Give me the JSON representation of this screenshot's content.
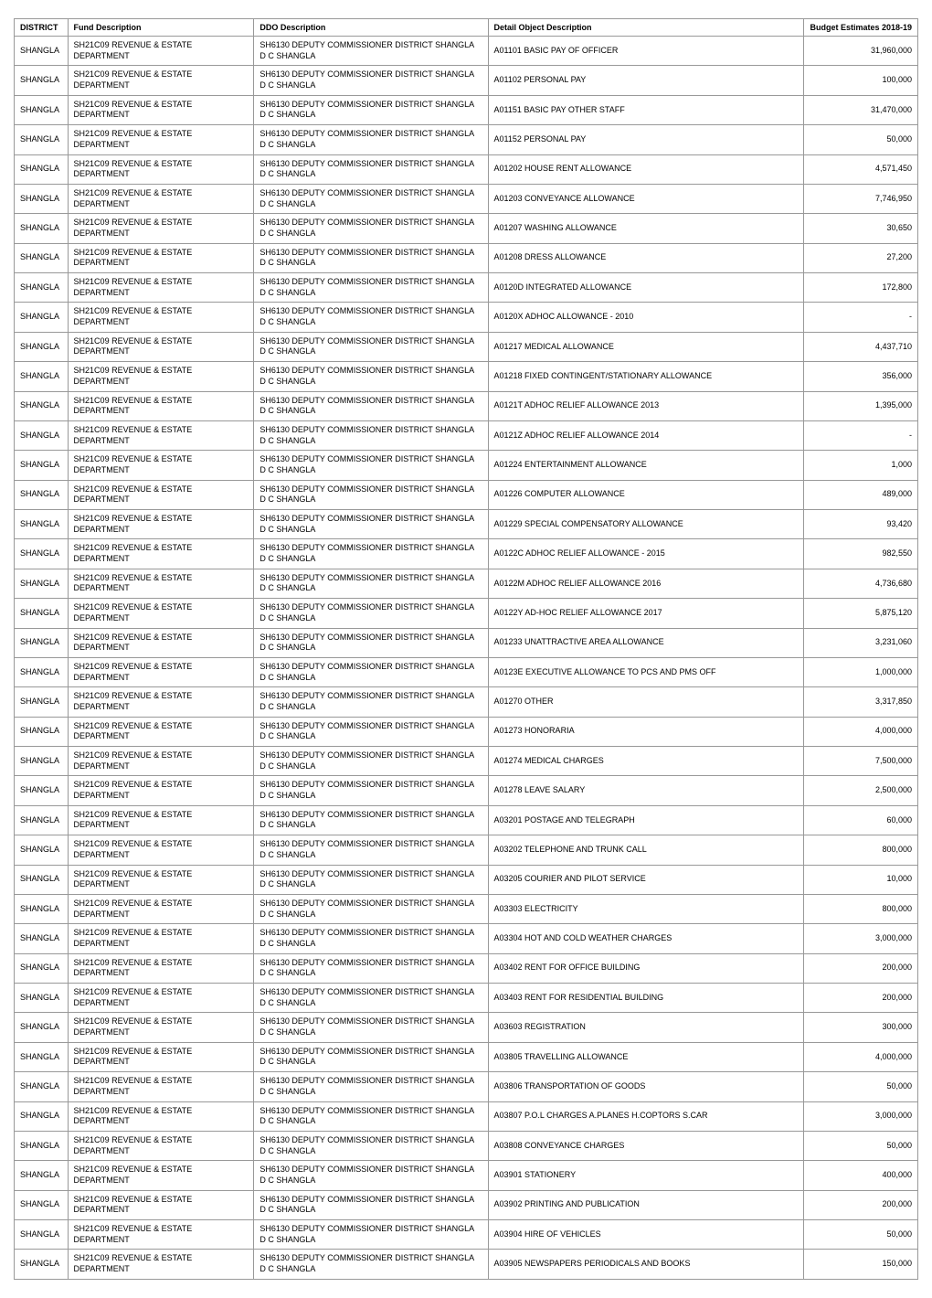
{
  "headers": {
    "district": "DISTRICT",
    "fund": "Fund Description",
    "ddo": "DDO Description",
    "detail": "Detail Object Description",
    "budget": "Budget Estimates 2018-19"
  },
  "rows": [
    {
      "district": "SHANGLA",
      "fund": "SH21C09 REVENUE & ESTATE DEPARTMENT",
      "ddo": "SH6130 DEPUTY COMMISSIONER DISTRICT SHANGLA D C SHANGLA",
      "detail": "A01101 BASIC PAY OF OFFICER",
      "budget": "31,960,000"
    },
    {
      "district": "SHANGLA",
      "fund": "SH21C09 REVENUE & ESTATE DEPARTMENT",
      "ddo": "SH6130 DEPUTY COMMISSIONER DISTRICT SHANGLA D C SHANGLA",
      "detail": "A01102 PERSONAL PAY",
      "budget": "100,000"
    },
    {
      "district": "SHANGLA",
      "fund": "SH21C09 REVENUE & ESTATE DEPARTMENT",
      "ddo": "SH6130 DEPUTY COMMISSIONER DISTRICT SHANGLA D C SHANGLA",
      "detail": "A01151 BASIC PAY OTHER STAFF",
      "budget": "31,470,000"
    },
    {
      "district": "SHANGLA",
      "fund": "SH21C09 REVENUE & ESTATE DEPARTMENT",
      "ddo": "SH6130 DEPUTY COMMISSIONER DISTRICT SHANGLA D C SHANGLA",
      "detail": "A01152 PERSONAL PAY",
      "budget": "50,000"
    },
    {
      "district": "SHANGLA",
      "fund": "SH21C09 REVENUE & ESTATE DEPARTMENT",
      "ddo": "SH6130 DEPUTY COMMISSIONER DISTRICT SHANGLA D C SHANGLA",
      "detail": "A01202 HOUSE RENT ALLOWANCE",
      "budget": "4,571,450"
    },
    {
      "district": "SHANGLA",
      "fund": "SH21C09 REVENUE & ESTATE DEPARTMENT",
      "ddo": "SH6130 DEPUTY COMMISSIONER DISTRICT SHANGLA D C SHANGLA",
      "detail": "A01203 CONVEYANCE ALLOWANCE",
      "budget": "7,746,950"
    },
    {
      "district": "SHANGLA",
      "fund": "SH21C09 REVENUE & ESTATE DEPARTMENT",
      "ddo": "SH6130 DEPUTY COMMISSIONER DISTRICT SHANGLA D C SHANGLA",
      "detail": "A01207 WASHING ALLOWANCE",
      "budget": "30,650"
    },
    {
      "district": "SHANGLA",
      "fund": "SH21C09 REVENUE & ESTATE DEPARTMENT",
      "ddo": "SH6130 DEPUTY COMMISSIONER DISTRICT SHANGLA D C SHANGLA",
      "detail": "A01208 DRESS ALLOWANCE",
      "budget": "27,200"
    },
    {
      "district": "SHANGLA",
      "fund": "SH21C09 REVENUE & ESTATE DEPARTMENT",
      "ddo": "SH6130 DEPUTY COMMISSIONER DISTRICT SHANGLA D C SHANGLA",
      "detail": "A0120D INTEGRATED ALLOWANCE",
      "budget": "172,800"
    },
    {
      "district": "SHANGLA",
      "fund": "SH21C09 REVENUE & ESTATE DEPARTMENT",
      "ddo": "SH6130 DEPUTY COMMISSIONER DISTRICT SHANGLA D C SHANGLA",
      "detail": "A0120X ADHOC ALLOWANCE - 2010",
      "budget": "-"
    },
    {
      "district": "SHANGLA",
      "fund": "SH21C09 REVENUE & ESTATE DEPARTMENT",
      "ddo": "SH6130 DEPUTY COMMISSIONER DISTRICT SHANGLA D C SHANGLA",
      "detail": "A01217 MEDICAL ALLOWANCE",
      "budget": "4,437,710"
    },
    {
      "district": "SHANGLA",
      "fund": "SH21C09 REVENUE & ESTATE DEPARTMENT",
      "ddo": "SH6130 DEPUTY COMMISSIONER DISTRICT SHANGLA D C SHANGLA",
      "detail": "A01218 FIXED CONTINGENT/STATIONARY ALLOWANCE",
      "budget": "356,000"
    },
    {
      "district": "SHANGLA",
      "fund": "SH21C09 REVENUE & ESTATE DEPARTMENT",
      "ddo": "SH6130 DEPUTY COMMISSIONER DISTRICT SHANGLA D C SHANGLA",
      "detail": "A0121T ADHOC RELIEF ALLOWANCE 2013",
      "budget": "1,395,000"
    },
    {
      "district": "SHANGLA",
      "fund": "SH21C09 REVENUE & ESTATE DEPARTMENT",
      "ddo": "SH6130 DEPUTY COMMISSIONER DISTRICT SHANGLA D C SHANGLA",
      "detail": "A0121Z ADHOC RELIEF ALLOWANCE 2014",
      "budget": "-"
    },
    {
      "district": "SHANGLA",
      "fund": "SH21C09 REVENUE & ESTATE DEPARTMENT",
      "ddo": "SH6130 DEPUTY COMMISSIONER DISTRICT SHANGLA D C SHANGLA",
      "detail": "A01224 ENTERTAINMENT ALLOWANCE",
      "budget": "1,000"
    },
    {
      "district": "SHANGLA",
      "fund": "SH21C09 REVENUE & ESTATE DEPARTMENT",
      "ddo": "SH6130 DEPUTY COMMISSIONER DISTRICT SHANGLA D C SHANGLA",
      "detail": "A01226 COMPUTER ALLOWANCE",
      "budget": "489,000"
    },
    {
      "district": "SHANGLA",
      "fund": "SH21C09 REVENUE & ESTATE DEPARTMENT",
      "ddo": "SH6130 DEPUTY COMMISSIONER DISTRICT SHANGLA D C SHANGLA",
      "detail": "A01229 SPECIAL COMPENSATORY ALLOWANCE",
      "budget": "93,420"
    },
    {
      "district": "SHANGLA",
      "fund": "SH21C09 REVENUE & ESTATE DEPARTMENT",
      "ddo": "SH6130 DEPUTY COMMISSIONER DISTRICT SHANGLA D C SHANGLA",
      "detail": "A0122C ADHOC RELIEF ALLOWANCE - 2015",
      "budget": "982,550"
    },
    {
      "district": "SHANGLA",
      "fund": "SH21C09 REVENUE & ESTATE DEPARTMENT",
      "ddo": "SH6130 DEPUTY COMMISSIONER DISTRICT SHANGLA D C SHANGLA",
      "detail": "A0122M ADHOC RELIEF ALLOWANCE 2016",
      "budget": "4,736,680"
    },
    {
      "district": "SHANGLA",
      "fund": "SH21C09 REVENUE & ESTATE DEPARTMENT",
      "ddo": "SH6130 DEPUTY COMMISSIONER DISTRICT SHANGLA D C SHANGLA",
      "detail": "A0122Y AD-HOC RELIEF ALLOWANCE 2017",
      "budget": "5,875,120"
    },
    {
      "district": "SHANGLA",
      "fund": "SH21C09 REVENUE & ESTATE DEPARTMENT",
      "ddo": "SH6130 DEPUTY COMMISSIONER DISTRICT SHANGLA D C SHANGLA",
      "detail": "A01233 UNATTRACTIVE AREA ALLOWANCE",
      "budget": "3,231,060"
    },
    {
      "district": "SHANGLA",
      "fund": "SH21C09 REVENUE & ESTATE DEPARTMENT",
      "ddo": "SH6130 DEPUTY COMMISSIONER DISTRICT SHANGLA D C SHANGLA",
      "detail": "A0123E EXECUTIVE ALLOWANCE TO PCS AND PMS OFF",
      "budget": "1,000,000"
    },
    {
      "district": "SHANGLA",
      "fund": "SH21C09 REVENUE & ESTATE DEPARTMENT",
      "ddo": "SH6130 DEPUTY COMMISSIONER DISTRICT SHANGLA D C SHANGLA",
      "detail": "A01270 OTHER",
      "budget": "3,317,850"
    },
    {
      "district": "SHANGLA",
      "fund": "SH21C09 REVENUE & ESTATE DEPARTMENT",
      "ddo": "SH6130 DEPUTY COMMISSIONER DISTRICT SHANGLA D C SHANGLA",
      "detail": "A01273 HONORARIA",
      "budget": "4,000,000"
    },
    {
      "district": "SHANGLA",
      "fund": "SH21C09 REVENUE & ESTATE DEPARTMENT",
      "ddo": "SH6130 DEPUTY COMMISSIONER DISTRICT SHANGLA D C SHANGLA",
      "detail": "A01274 MEDICAL CHARGES",
      "budget": "7,500,000"
    },
    {
      "district": "SHANGLA",
      "fund": "SH21C09 REVENUE & ESTATE DEPARTMENT",
      "ddo": "SH6130 DEPUTY COMMISSIONER DISTRICT SHANGLA D C SHANGLA",
      "detail": "A01278 LEAVE SALARY",
      "budget": "2,500,000"
    },
    {
      "district": "SHANGLA",
      "fund": "SH21C09 REVENUE & ESTATE DEPARTMENT",
      "ddo": "SH6130 DEPUTY COMMISSIONER DISTRICT SHANGLA D C SHANGLA",
      "detail": "A03201 POSTAGE AND TELEGRAPH",
      "budget": "60,000"
    },
    {
      "district": "SHANGLA",
      "fund": "SH21C09 REVENUE & ESTATE DEPARTMENT",
      "ddo": "SH6130 DEPUTY COMMISSIONER DISTRICT SHANGLA D C SHANGLA",
      "detail": "A03202 TELEPHONE AND TRUNK CALL",
      "budget": "800,000"
    },
    {
      "district": "SHANGLA",
      "fund": "SH21C09 REVENUE & ESTATE DEPARTMENT",
      "ddo": "SH6130 DEPUTY COMMISSIONER DISTRICT SHANGLA D C SHANGLA",
      "detail": "A03205 COURIER AND PILOT SERVICE",
      "budget": "10,000"
    },
    {
      "district": "SHANGLA",
      "fund": "SH21C09 REVENUE & ESTATE DEPARTMENT",
      "ddo": "SH6130 DEPUTY COMMISSIONER DISTRICT SHANGLA D C SHANGLA",
      "detail": "A03303 ELECTRICITY",
      "budget": "800,000"
    },
    {
      "district": "SHANGLA",
      "fund": "SH21C09 REVENUE & ESTATE DEPARTMENT",
      "ddo": "SH6130 DEPUTY COMMISSIONER DISTRICT SHANGLA D C SHANGLA",
      "detail": "A03304 HOT AND COLD WEATHER CHARGES",
      "budget": "3,000,000"
    },
    {
      "district": "SHANGLA",
      "fund": "SH21C09 REVENUE & ESTATE DEPARTMENT",
      "ddo": "SH6130 DEPUTY COMMISSIONER DISTRICT SHANGLA D C SHANGLA",
      "detail": "A03402 RENT FOR OFFICE BUILDING",
      "budget": "200,000"
    },
    {
      "district": "SHANGLA",
      "fund": "SH21C09 REVENUE & ESTATE DEPARTMENT",
      "ddo": "SH6130 DEPUTY COMMISSIONER DISTRICT SHANGLA D C SHANGLA",
      "detail": "A03403 RENT FOR RESIDENTIAL BUILDING",
      "budget": "200,000"
    },
    {
      "district": "SHANGLA",
      "fund": "SH21C09 REVENUE & ESTATE DEPARTMENT",
      "ddo": "SH6130 DEPUTY COMMISSIONER DISTRICT SHANGLA D C SHANGLA",
      "detail": "A03603 REGISTRATION",
      "budget": "300,000"
    },
    {
      "district": "SHANGLA",
      "fund": "SH21C09 REVENUE & ESTATE DEPARTMENT",
      "ddo": "SH6130 DEPUTY COMMISSIONER DISTRICT SHANGLA D C SHANGLA",
      "detail": "A03805 TRAVELLING ALLOWANCE",
      "budget": "4,000,000"
    },
    {
      "district": "SHANGLA",
      "fund": "SH21C09 REVENUE & ESTATE DEPARTMENT",
      "ddo": "SH6130 DEPUTY COMMISSIONER DISTRICT SHANGLA D C SHANGLA",
      "detail": "A03806 TRANSPORTATION OF GOODS",
      "budget": "50,000"
    },
    {
      "district": "SHANGLA",
      "fund": "SH21C09 REVENUE & ESTATE DEPARTMENT",
      "ddo": "SH6130 DEPUTY COMMISSIONER DISTRICT SHANGLA D C SHANGLA",
      "detail": "A03807 P.O.L CHARGES A.PLANES H.COPTORS S.CAR",
      "budget": "3,000,000"
    },
    {
      "district": "SHANGLA",
      "fund": "SH21C09 REVENUE & ESTATE DEPARTMENT",
      "ddo": "SH6130 DEPUTY COMMISSIONER DISTRICT SHANGLA D C SHANGLA",
      "detail": "A03808 CONVEYANCE CHARGES",
      "budget": "50,000"
    },
    {
      "district": "SHANGLA",
      "fund": "SH21C09 REVENUE & ESTATE DEPARTMENT",
      "ddo": "SH6130 DEPUTY COMMISSIONER DISTRICT SHANGLA D C SHANGLA",
      "detail": "A03901 STATIONERY",
      "budget": "400,000"
    },
    {
      "district": "SHANGLA",
      "fund": "SH21C09 REVENUE & ESTATE DEPARTMENT",
      "ddo": "SH6130 DEPUTY COMMISSIONER DISTRICT SHANGLA D C SHANGLA",
      "detail": "A03902 PRINTING AND PUBLICATION",
      "budget": "200,000"
    },
    {
      "district": "SHANGLA",
      "fund": "SH21C09 REVENUE & ESTATE DEPARTMENT",
      "ddo": "SH6130 DEPUTY COMMISSIONER DISTRICT SHANGLA D C SHANGLA",
      "detail": "A03904 HIRE OF VEHICLES",
      "budget": "50,000"
    },
    {
      "district": "SHANGLA",
      "fund": "SH21C09 REVENUE & ESTATE DEPARTMENT",
      "ddo": "SH6130 DEPUTY COMMISSIONER DISTRICT SHANGLA D C SHANGLA",
      "detail": "A03905 NEWSPAPERS PERIODICALS AND BOOKS",
      "budget": "150,000"
    }
  ]
}
